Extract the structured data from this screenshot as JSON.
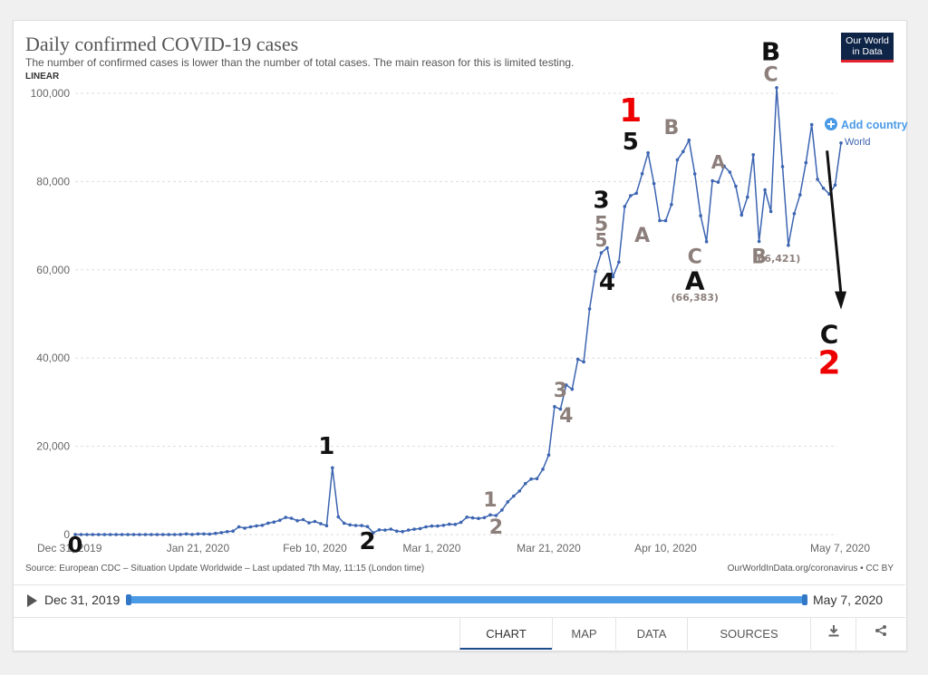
{
  "header": {
    "title": "Daily confirmed COVID-19 cases",
    "subtitle": "The number of confirmed cases is lower than the number of total cases. The main reason for this is limited testing.",
    "scale_toggle": "LINEAR",
    "logo_line1": "Our World",
    "logo_line2": "in Data"
  },
  "controls": {
    "add_country": "Add country",
    "add_icon": "plus-circle-icon"
  },
  "chart_data": {
    "type": "line",
    "ylim": [
      0,
      100000
    ],
    "y_ticks": [
      "0",
      "20,000",
      "40,000",
      "60,000",
      "80,000",
      "100,000"
    ],
    "x_ticks": [
      "Dec 31, 2019",
      "Jan 21, 2020",
      "Feb 10, 2020",
      "Mar 1, 2020",
      "Mar 21, 2020",
      "Apr 10, 2020",
      "May 7, 2020"
    ],
    "grid": true,
    "series": [
      {
        "name": "World",
        "color": "#3c64b1",
        "start_date": "Dec 31, 2019",
        "values": [
          27,
          0,
          0,
          0,
          0,
          0,
          0,
          0,
          0,
          0,
          0,
          0,
          0,
          0,
          0,
          0,
          1,
          4,
          17,
          136,
          19,
          151,
          140,
          97,
          259,
          441,
          665,
          787,
          1753,
          1466,
          1740,
          1980,
          2099,
          2589,
          2825,
          3235,
          3884,
          3694,
          3143,
          3385,
          2652,
          2984,
          2473,
          2022,
          15141,
          4001,
          2570,
          2187,
          2047,
          2040,
          1798,
          412,
          1072,
          1016,
          1231,
          785,
          668,
          1011,
          1205,
          1357,
          1743,
          1921,
          1920,
          2088,
          2335,
          2303,
          2781,
          3938,
          3775,
          3662,
          3840,
          4466,
          4311,
          5555,
          7419,
          8703,
          9858,
          11539,
          12592,
          12661,
          14798,
          18027,
          29004,
          28424,
          33901,
          32941,
          39703,
          39135,
          51147,
          59657,
          63859,
          64994,
          58432,
          61750,
          74349,
          76795,
          77356,
          81781,
          86503,
          79547,
          71155,
          71135,
          74786,
          84935,
          86797,
          89380,
          81738,
          72255,
          66383,
          80184,
          79865,
          83508,
          82137,
          78938,
          72444,
          76465,
          86081,
          66421,
          78129,
          73205,
          101279,
          83383,
          65571,
          72729,
          76980,
          84264,
          92899,
          80523,
          78479,
          77165,
          79222,
          88744
        ]
      }
    ],
    "annotations": [
      {
        "text": "0",
        "color": "black",
        "date": "Dec 31, 2019",
        "y": -4000,
        "size": 24
      },
      {
        "text": "1",
        "color": "black",
        "date": "Feb 12, 2020",
        "y": 18300,
        "size": 26
      },
      {
        "text": "2",
        "color": "black",
        "date": "Feb 19, 2020",
        "y": -3300,
        "size": 26
      },
      {
        "text": "1",
        "color": "gray",
        "date": "Mar 11, 2020",
        "y": 6400,
        "size": 22
      },
      {
        "text": "2",
        "color": "gray",
        "date": "Mar 12, 2020",
        "y": 200,
        "size": 22
      },
      {
        "text": "3",
        "color": "gray",
        "date": "Mar 23, 2020",
        "y": 31200,
        "size": 22
      },
      {
        "text": "4",
        "color": "gray",
        "date": "Mar 24, 2020",
        "y": 25500,
        "size": 22
      },
      {
        "text": "3",
        "color": "black",
        "date": "Mar 30, 2020",
        "y": 74000,
        "size": 26
      },
      {
        "text": "5",
        "color": "gray",
        "date": "Mar 30, 2020",
        "y": 68900,
        "size": 22
      },
      {
        "text": "5",
        "color": "gray",
        "date": "Mar 30, 2020",
        "y": 65300,
        "size": 20
      },
      {
        "text": "4",
        "color": "black",
        "date": "Mar 31, 2020",
        "y": 55400,
        "size": 26
      },
      {
        "text": "1",
        "color": "red",
        "date": "Apr 4, 2020",
        "y": 93600,
        "size": 36
      },
      {
        "text": "5",
        "color": "black",
        "date": "Apr 4, 2020",
        "y": 87300,
        "size": 26
      },
      {
        "text": "A",
        "color": "gray",
        "date": "Apr 6, 2020",
        "y": 66300,
        "size": 22
      },
      {
        "text": "B",
        "color": "gray",
        "date": "Apr 11, 2020",
        "y": 90800,
        "size": 22
      },
      {
        "text": "C",
        "color": "gray",
        "date": "Apr 15, 2020",
        "y": 61500,
        "size": 22
      },
      {
        "text": "A",
        "color": "black",
        "date": "Apr 15, 2020",
        "y": 55500,
        "size": 28
      },
      {
        "text": "(66,383)",
        "color": "gray",
        "date": "Apr 15, 2020",
        "y": 53000,
        "size": 11
      },
      {
        "text": "A",
        "color": "gray",
        "date": "Apr 19, 2020",
        "y": 83000,
        "size": 20
      },
      {
        "text": "B",
        "color": "gray",
        "date": "Apr 26, 2020",
        "y": 61500,
        "size": 22
      },
      {
        "text": "(66,421)",
        "color": "gray",
        "date": "Apr 29, 2020",
        "y": 61800,
        "size": 11
      },
      {
        "text": "B",
        "color": "black",
        "date": "Apr 28, 2020",
        "y": 107500,
        "size": 28
      },
      {
        "text": "C",
        "color": "gray",
        "date": "Apr 28, 2020",
        "y": 102800,
        "size": 22
      },
      {
        "text": "C",
        "color": "black",
        "date": "May 8, 2020",
        "y": 43400,
        "size": 28
      },
      {
        "text": "2",
        "color": "red",
        "date": "May 8, 2020",
        "y": 36400,
        "size": 36
      }
    ],
    "arrow": {
      "from_date": "May 7, 2020",
      "from_y": 87000,
      "to_date": "May 8, 2020",
      "to_y": 51000
    }
  },
  "source": {
    "left": "Source: European CDC – Situation Update Worldwide – Last updated 7th May, 11:15 (London time)",
    "right": "OurWorldInData.org/coronavirus • CC BY"
  },
  "timeline": {
    "start": "Dec 31, 2019",
    "end": "May 7, 2020",
    "play_icon": "play-icon"
  },
  "tabs": [
    {
      "label": "CHART",
      "active": true
    },
    {
      "label": "MAP",
      "active": false
    },
    {
      "label": "DATA",
      "active": false
    },
    {
      "label": "SOURCES",
      "active": false
    }
  ],
  "tab_icons": [
    "download-icon",
    "share-icon"
  ]
}
